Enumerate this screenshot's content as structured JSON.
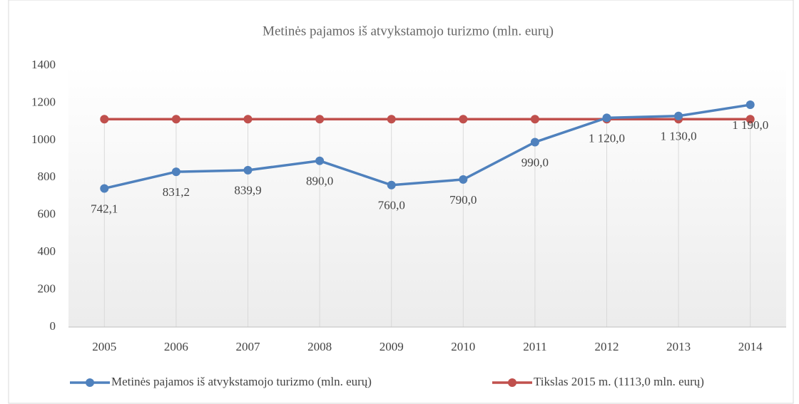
{
  "chart_data": {
    "type": "line",
    "title": "Metinės pajamos iš atvykstamojo turizmo (mln. eurų)",
    "categories": [
      "2005",
      "2006",
      "2007",
      "2008",
      "2009",
      "2010",
      "2011",
      "2012",
      "2013",
      "2014"
    ],
    "series": [
      {
        "name": "Metinės pajamos iš atvykstamojo turizmo (mln. eurų)",
        "color": "#4f81bd",
        "values": [
          742.1,
          831.2,
          839.9,
          890,
          760,
          790,
          990,
          1120,
          1130,
          1190
        ],
        "value_labels": [
          "742,1",
          "831,2",
          "839,9",
          "890,0",
          "760,0",
          "790,0",
          "990,0",
          "1 120,0",
          "1 130,0",
          "1 190,0"
        ]
      },
      {
        "name": "Tikslas 2015 m. (1113,0 mln. eurų)",
        "color": "#c0504d",
        "values": [
          1113,
          1113,
          1113,
          1113,
          1113,
          1113,
          1113,
          1113,
          1113,
          1113
        ]
      }
    ],
    "ylim": [
      0,
      1400
    ],
    "yticks": [
      0,
      200,
      400,
      600,
      800,
      1000,
      1200,
      1400
    ],
    "grid": true,
    "legend": "bottom"
  }
}
